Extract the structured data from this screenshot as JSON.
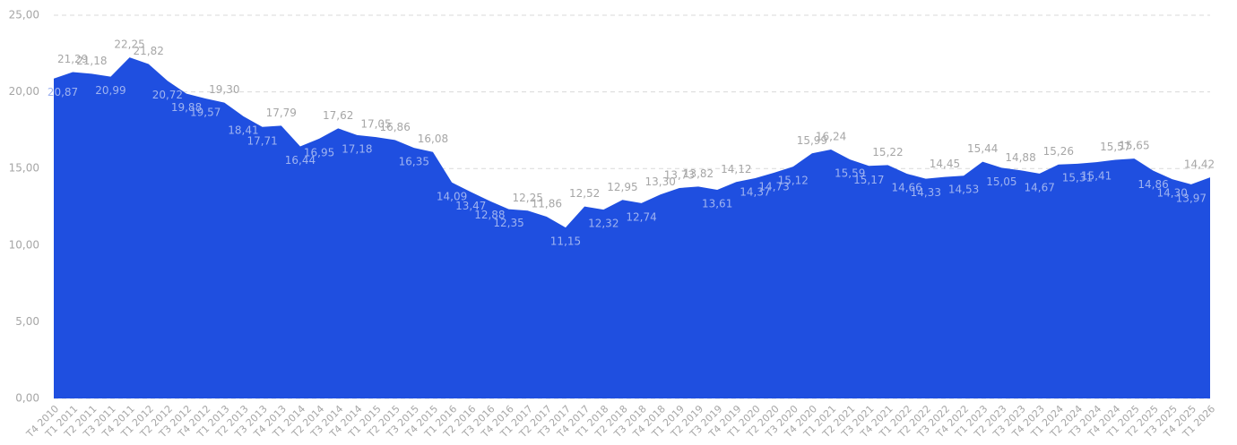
{
  "chart_data": {
    "type": "area",
    "categories": [
      "T4 2010",
      "T1 2011",
      "T2 2011",
      "T3 2011",
      "T4 2011",
      "T1 2012",
      "T2 2012",
      "T3 2012",
      "T4 2012",
      "T1 2013",
      "T2 2013",
      "T3 2013",
      "T4 2013",
      "T1 2014",
      "T2 2014",
      "T3 2014",
      "T4 2014",
      "T1 2015",
      "T2 2015",
      "T3 2015",
      "T4 2015",
      "T1 2016",
      "T2 2016",
      "T3 2016",
      "T4 2016",
      "T1 2017",
      "T2 2017",
      "T3 2017",
      "T4 2017",
      "T1 2018",
      "T2 2018",
      "T3 2018",
      "T4 2018",
      "T1 2019",
      "T2 2019",
      "T3 2019",
      "T4 2019",
      "T1 2020",
      "T2 2020",
      "T3 2020",
      "T4 2020",
      "T1 2021",
      "T2 2021",
      "T3 2021",
      "T4 2021",
      "T1 2022",
      "T2 2022",
      "T3 2022",
      "T4 2022",
      "T1 2023",
      "T2 2023",
      "T3 2023",
      "T4 2023",
      "T1 2024",
      "T2 2024",
      "T3 2024",
      "T4 2024",
      "T1 2025",
      "T2 2025",
      "T3 2025",
      "T4 2025",
      "T1 2026"
    ],
    "values": [
      20.87,
      21.29,
      21.18,
      20.99,
      22.25,
      21.82,
      20.72,
      19.88,
      19.57,
      19.3,
      18.41,
      17.71,
      17.79,
      16.44,
      16.95,
      17.62,
      17.18,
      17.05,
      16.86,
      16.35,
      16.08,
      14.09,
      13.47,
      12.88,
      12.35,
      12.25,
      11.86,
      11.15,
      12.52,
      12.32,
      12.95,
      12.74,
      13.3,
      13.73,
      13.82,
      13.61,
      14.12,
      14.37,
      14.73,
      15.12,
      15.99,
      16.24,
      15.59,
      15.17,
      15.22,
      14.66,
      14.33,
      14.45,
      14.53,
      15.44,
      15.05,
      14.88,
      14.67,
      15.26,
      15.31,
      15.41,
      15.57,
      15.65,
      14.86,
      14.3,
      13.97,
      14.42
    ],
    "value_labels": [
      "20,87",
      "21,29",
      "21,18",
      "20,99",
      "22,25",
      "21,82",
      "20,72",
      "19,88",
      "19,57",
      "19,30",
      "18,41",
      "17,71",
      "17,79",
      "16,44",
      "16,95",
      "17,62",
      "17,18",
      "17,05",
      "16,86",
      "16,35",
      "16,08",
      "14,09",
      "13,47",
      "12,88",
      "12,35",
      "12,25",
      "11,86",
      "11,15",
      "12,52",
      "12,32",
      "12,95",
      "12,74",
      "13,30",
      "13,73",
      "13,82",
      "13,61",
      "14,12",
      "14,37",
      "14,73",
      "15,12",
      "15,99",
      "16,24",
      "15,59",
      "15,17",
      "15,22",
      "14,66",
      "14,33",
      "14,45",
      "14,53",
      "15,44",
      "15,05",
      "14,88",
      "14,67",
      "15,26",
      "15,31",
      "15,41",
      "15,57",
      "15,65",
      "14,86",
      "14,30",
      "13,97",
      "14,42"
    ],
    "color": "#1f4fe0",
    "ylim": [
      0,
      25
    ],
    "yticks": [
      {
        "value": 0,
        "label": "0,00"
      },
      {
        "value": 5,
        "label": "5,00"
      },
      {
        "value": 10,
        "label": "10,00"
      },
      {
        "value": 15,
        "label": "15,00"
      },
      {
        "value": 20,
        "label": "20,00"
      },
      {
        "value": 25,
        "label": "25,00"
      }
    ],
    "grid": true
  }
}
